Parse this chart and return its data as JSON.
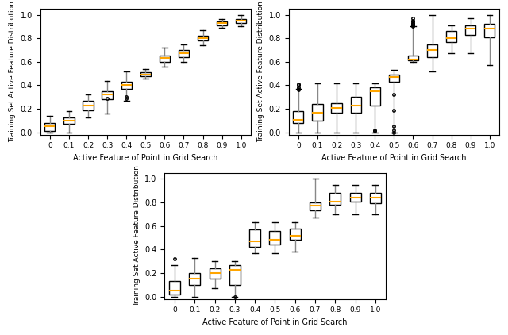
{
  "xlabel": "Active Feature of Point in Grid Search",
  "ylabel": "Training Set Active Feature Distribution",
  "plots": [
    {
      "x_tick_labels": [
        "0",
        "0.1",
        "0.2",
        "0.3",
        "0.4",
        "0.5",
        "0.6",
        "0.7",
        "0.8",
        "0.9",
        "1.0"
      ],
      "boxes": [
        {
          "whislo": 0.0,
          "q1": 0.01,
          "med": 0.05,
          "q3": 0.08,
          "whishi": 0.14,
          "fliers": []
        },
        {
          "whislo": 0.0,
          "q1": 0.07,
          "med": 0.1,
          "q3": 0.13,
          "whishi": 0.18,
          "fliers": []
        },
        {
          "whislo": 0.13,
          "q1": 0.19,
          "med": 0.23,
          "q3": 0.27,
          "whishi": 0.32,
          "fliers": []
        },
        {
          "whislo": 0.16,
          "q1": 0.28,
          "med": 0.32,
          "q3": 0.35,
          "whishi": 0.44,
          "fliers": [
            0.29
          ]
        },
        {
          "whislo": 0.27,
          "q1": 0.37,
          "med": 0.4,
          "q3": 0.43,
          "whishi": 0.52,
          "fliers": [
            0.29,
            0.3
          ]
        },
        {
          "whislo": 0.46,
          "q1": 0.48,
          "med": 0.49,
          "q3": 0.51,
          "whishi": 0.54,
          "fliers": []
        },
        {
          "whislo": 0.56,
          "q1": 0.6,
          "med": 0.63,
          "q3": 0.65,
          "whishi": 0.72,
          "fliers": []
        },
        {
          "whislo": 0.6,
          "q1": 0.64,
          "med": 0.67,
          "q3": 0.7,
          "whishi": 0.75,
          "fliers": []
        },
        {
          "whislo": 0.74,
          "q1": 0.78,
          "med": 0.8,
          "q3": 0.82,
          "whishi": 0.87,
          "fliers": []
        },
        {
          "whislo": 0.89,
          "q1": 0.91,
          "med": 0.93,
          "q3": 0.94,
          "whishi": 0.96,
          "fliers": []
        },
        {
          "whislo": 0.9,
          "q1": 0.93,
          "med": 0.95,
          "q3": 0.96,
          "whishi": 1.0,
          "fliers": []
        }
      ],
      "ylim": [
        -0.02,
        1.05
      ]
    },
    {
      "x_tick_labels": [
        "0",
        "0.1",
        "0.2",
        "0.3",
        "0.4",
        "0.5",
        "0.6",
        "0.7",
        "0.8",
        "0.9",
        "1.0"
      ],
      "boxes": [
        {
          "whislo": 0.0,
          "q1": 0.08,
          "med": 0.11,
          "q3": 0.18,
          "whishi": 0.37,
          "fliers": [
            0.36,
            0.37,
            0.38,
            0.4,
            0.41
          ]
        },
        {
          "whislo": 0.0,
          "q1": 0.1,
          "med": 0.17,
          "q3": 0.24,
          "whishi": 0.42,
          "fliers": []
        },
        {
          "whislo": 0.0,
          "q1": 0.17,
          "med": 0.21,
          "q3": 0.25,
          "whishi": 0.42,
          "fliers": []
        },
        {
          "whislo": 0.0,
          "q1": 0.17,
          "med": 0.23,
          "q3": 0.3,
          "whishi": 0.42,
          "fliers": []
        },
        {
          "whislo": 0.0,
          "q1": 0.23,
          "med": 0.35,
          "q3": 0.38,
          "whishi": 0.42,
          "fliers": [
            0.01,
            0.02
          ]
        },
        {
          "whislo": 0.0,
          "q1": 0.43,
          "med": 0.47,
          "q3": 0.49,
          "whishi": 0.53,
          "fliers": [
            0.0,
            0.02,
            0.05,
            0.19,
            0.32
          ]
        },
        {
          "whislo": 0.6,
          "q1": 0.61,
          "med": 0.62,
          "q3": 0.65,
          "whishi": 0.9,
          "fliers": [
            0.9,
            0.91,
            0.92,
            0.93,
            0.94,
            0.95,
            0.97
          ]
        },
        {
          "whislo": 0.52,
          "q1": 0.64,
          "med": 0.7,
          "q3": 0.75,
          "whishi": 1.0,
          "fliers": []
        },
        {
          "whislo": 0.67,
          "q1": 0.77,
          "med": 0.8,
          "q3": 0.86,
          "whishi": 0.91,
          "fliers": []
        },
        {
          "whislo": 0.67,
          "q1": 0.83,
          "med": 0.88,
          "q3": 0.91,
          "whishi": 0.97,
          "fliers": []
        },
        {
          "whislo": 0.57,
          "q1": 0.81,
          "med": 0.88,
          "q3": 0.92,
          "whishi": 1.0,
          "fliers": []
        }
      ],
      "ylim": [
        -0.02,
        1.05
      ]
    },
    {
      "x_tick_labels": [
        "0",
        "0.1",
        "0.2",
        "0.3",
        "0.4",
        "0.5",
        "0.6",
        "0.7",
        "0.8",
        "0.9",
        "1.0"
      ],
      "boxes": [
        {
          "whislo": 0.0,
          "q1": 0.02,
          "med": 0.05,
          "q3": 0.13,
          "whishi": 0.27,
          "fliers": [
            0.32
          ]
        },
        {
          "whislo": 0.0,
          "q1": 0.1,
          "med": 0.15,
          "q3": 0.2,
          "whishi": 0.33,
          "fliers": []
        },
        {
          "whislo": 0.07,
          "q1": 0.15,
          "med": 0.2,
          "q3": 0.24,
          "whishi": 0.3,
          "fliers": []
        },
        {
          "whislo": 0.0,
          "q1": 0.1,
          "med": 0.23,
          "q3": 0.27,
          "whishi": 0.3,
          "fliers": [
            0.0
          ]
        },
        {
          "whislo": 0.37,
          "q1": 0.42,
          "med": 0.47,
          "q3": 0.57,
          "whishi": 0.63,
          "fliers": []
        },
        {
          "whislo": 0.37,
          "q1": 0.44,
          "med": 0.48,
          "q3": 0.56,
          "whishi": 0.63,
          "fliers": []
        },
        {
          "whislo": 0.38,
          "q1": 0.48,
          "med": 0.52,
          "q3": 0.58,
          "whishi": 0.63,
          "fliers": []
        },
        {
          "whislo": 0.67,
          "q1": 0.73,
          "med": 0.77,
          "q3": 0.8,
          "whishi": 1.0,
          "fliers": []
        },
        {
          "whislo": 0.7,
          "q1": 0.78,
          "med": 0.81,
          "q3": 0.88,
          "whishi": 0.95,
          "fliers": []
        },
        {
          "whislo": 0.7,
          "q1": 0.81,
          "med": 0.84,
          "q3": 0.88,
          "whishi": 0.95,
          "fliers": []
        },
        {
          "whislo": 0.7,
          "q1": 0.79,
          "med": 0.84,
          "q3": 0.88,
          "whishi": 0.95,
          "fliers": []
        }
      ],
      "ylim": [
        -0.02,
        1.05
      ]
    }
  ],
  "median_color": "orange",
  "box_facecolor": "white",
  "box_edgecolor": "black",
  "whisker_color": "#888888",
  "cap_color": "black",
  "flier_color": "black",
  "y_ticks": [
    0.0,
    0.2,
    0.4,
    0.6,
    0.8,
    1.0
  ],
  "figure_size": [
    6.4,
    4.22
  ],
  "dpi": 100
}
